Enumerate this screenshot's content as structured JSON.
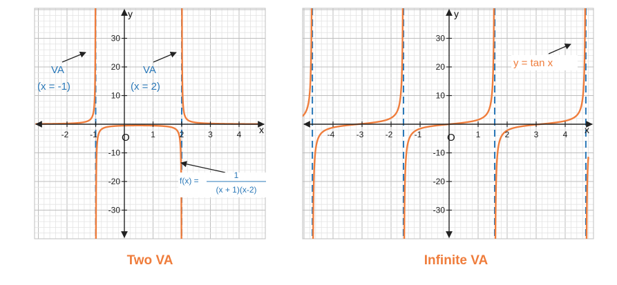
{
  "colors": {
    "curve": "#ef7d3c",
    "asymptote": "#2a78b8",
    "annotation_text": "#2a78b8",
    "title": "#ef7d3c",
    "grid_minor": "#e3e3e3",
    "grid_major": "#bdbdbd",
    "axis": "#222222",
    "frame": "#bfbfbf"
  },
  "chart_data": [
    {
      "type": "line",
      "title": "Two VA",
      "xlabel": "x",
      "ylabel": "y",
      "origin_label": "O",
      "xlim": [
        -3.1,
        4.8
      ],
      "ylim": [
        -40,
        40
      ],
      "x_ticks": [
        {
          "value": -2,
          "label": "-2"
        },
        {
          "value": -1,
          "label": "-1"
        },
        {
          "value": 1,
          "label": "1"
        },
        {
          "value": 2,
          "label": "2"
        },
        {
          "value": 3,
          "label": "3"
        },
        {
          "value": 4,
          "label": "4"
        }
      ],
      "y_ticks": [
        {
          "value": 30,
          "label": "30"
        },
        {
          "value": 20,
          "label": "20"
        },
        {
          "value": 10,
          "label": "10"
        },
        {
          "value": -10,
          "label": "-10"
        },
        {
          "value": -20,
          "label": "-20"
        },
        {
          "value": -30,
          "label": "-30"
        }
      ],
      "function": "1/((x+1)(x-2))",
      "asymptotes": [
        -1,
        2
      ],
      "series": [
        {
          "name": "f(x) = 1/((x+1)(x-2))",
          "expression": "1/((x+1)(x-2))"
        }
      ],
      "annotations": {
        "va_left": {
          "line1": "VA",
          "line2": "(x = -1)"
        },
        "va_right": {
          "line1": "VA",
          "line2": "(x = 2)"
        },
        "function_label": {
          "prefix": "f(x) =",
          "numerator": "1",
          "denominator": "(x + 1)(x-2)"
        }
      }
    },
    {
      "type": "line",
      "title": "Infinite VA",
      "xlabel": "x",
      "ylabel": "y",
      "origin_label": "O",
      "xlim": [
        -5.1,
        4.8
      ],
      "ylim": [
        -40,
        40
      ],
      "x_ticks": [
        {
          "value": -4,
          "label": "-4"
        },
        {
          "value": -3,
          "label": "-3"
        },
        {
          "value": -2,
          "label": "-2"
        },
        {
          "value": -1,
          "label": "-1"
        },
        {
          "value": 1,
          "label": "1"
        },
        {
          "value": 2,
          "label": "2"
        },
        {
          "value": 3,
          "label": "3"
        },
        {
          "value": 4,
          "label": "4"
        }
      ],
      "y_ticks": [
        {
          "value": 30,
          "label": "30"
        },
        {
          "value": 20,
          "label": "20"
        },
        {
          "value": 10,
          "label": "10"
        },
        {
          "value": -10,
          "label": "-10"
        },
        {
          "value": -20,
          "label": "-20"
        },
        {
          "value": -30,
          "label": "-30"
        }
      ],
      "function": "tan(x)",
      "asymptotes": [
        -4.712,
        -1.571,
        1.571,
        4.712
      ],
      "series": [
        {
          "name": "y = tan x",
          "expression": "tan(x)"
        }
      ],
      "annotations": {
        "function_label": {
          "text": "y = tan x"
        }
      }
    }
  ]
}
